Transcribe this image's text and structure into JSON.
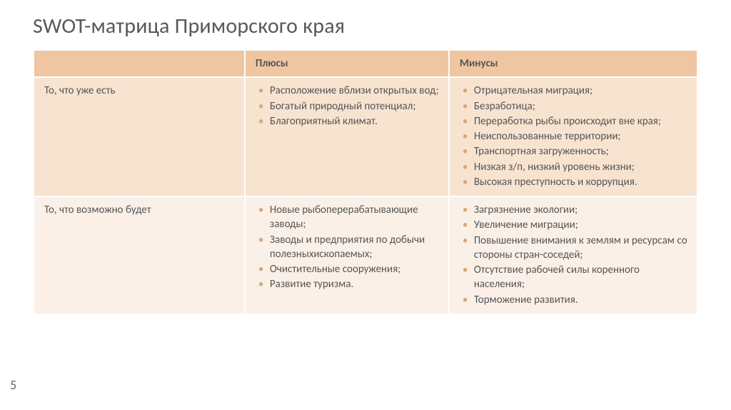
{
  "page_number": "5",
  "title": "SWOT-матрица Приморского края",
  "colors": {
    "header_bg": "#f0c5a2",
    "row0_bg": "#f8e3d1",
    "row1_bg": "#fbf0e8",
    "bullet": "#dba674",
    "text": "#555555",
    "title": "#595959"
  },
  "table": {
    "type": "swot-matrix",
    "col_headers": [
      "",
      "Плюсы",
      "Минусы"
    ],
    "row_headers": [
      "То, что уже есть",
      "То, что возможно будет"
    ],
    "cells": [
      [
        [
          "Расположение вблизи открытых вод;",
          "Богатый природный потенциал;",
          "Благоприятный климат."
        ],
        [
          "Отрицательная миграция;",
          "Безработица;",
          "Переработка рыбы происходит вне края;",
          "Неиспользованные территории;",
          "Транспортная загруженность;",
          "Низкая з/п, низкий уровень жизни;",
          "Высокая преступность и коррупция."
        ]
      ],
      [
        [
          "Новые рыбоперерабатывающие заводы;",
          "Заводы и предприятия по добычи полезныхископаемых;",
          "Очистительные сооружения;",
          "Развитие туризма."
        ],
        [
          "Загрязнение экологии;",
          "Увеличение миграции;",
          "Повышение внимания к землям и ресурсам со стороны стран-соседей;",
          "Отсутствие рабочей силы коренного населения;",
          "Торможение развития."
        ]
      ]
    ]
  }
}
